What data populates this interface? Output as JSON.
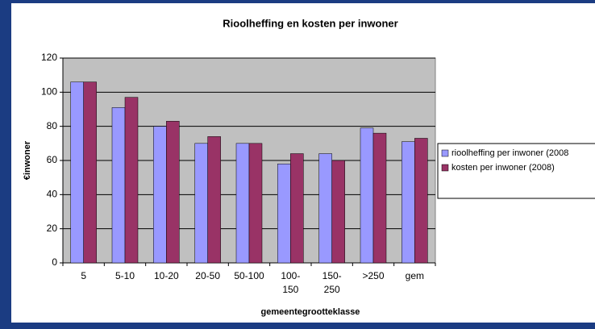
{
  "chart_data": {
    "type": "bar",
    "title": "Rioolheffing en kosten per inwoner",
    "x_label": "gemeentegrootteklasse",
    "y_label": "€inwoner",
    "categories": [
      "5",
      "5-10",
      "10-20",
      "20-50",
      "50-100",
      "100-\n150",
      "150-\n250",
      ">250",
      "gem"
    ],
    "series": [
      {
        "name": "rioolheffing per inwoner (2008",
        "color": "#9999ff",
        "values": [
          106,
          91,
          80,
          70,
          70,
          58,
          64,
          79,
          71
        ]
      },
      {
        "name": "kosten per inwoner (2008)",
        "color": "#993366",
        "values": [
          106,
          97,
          83,
          74,
          70,
          64,
          60,
          76,
          73
        ]
      }
    ],
    "ylim": [
      0,
      120
    ],
    "yticks": [
      0,
      20,
      40,
      60,
      80,
      100,
      120
    ],
    "grid": true,
    "plot_background": "#c0c0c0",
    "legend": "right"
  }
}
